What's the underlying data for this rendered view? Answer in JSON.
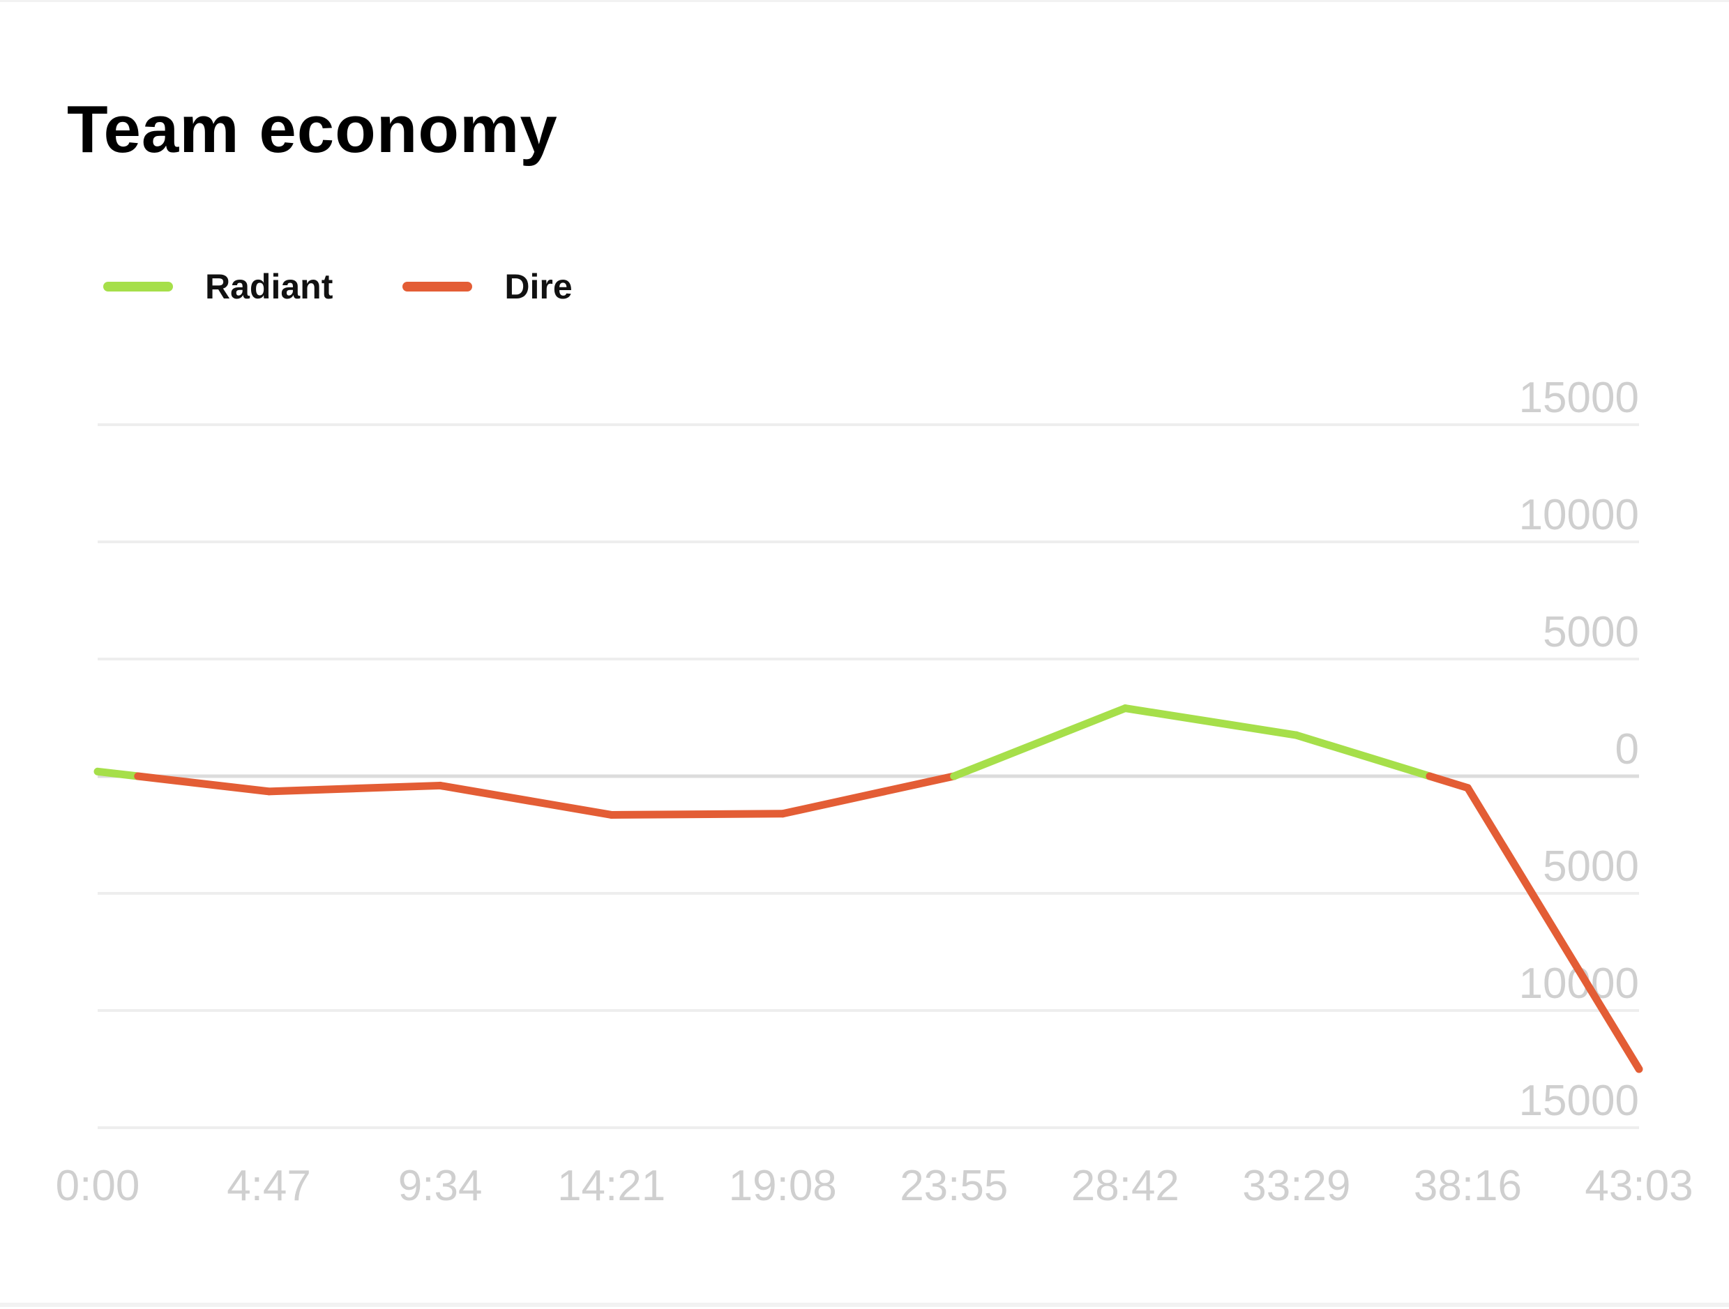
{
  "chart_data": {
    "type": "line",
    "title": "Team economy",
    "xlabel": "",
    "ylabel": "",
    "x": [
      "0:00",
      "4:47",
      "9:34",
      "14:21",
      "19:08",
      "23:55",
      "28:42",
      "33:29",
      "38:16",
      "43:03"
    ],
    "x_seconds": [
      0,
      287,
      574,
      861,
      1148,
      1435,
      1722,
      2009,
      2296,
      2583
    ],
    "values": [
      200,
      -650,
      -400,
      -1650,
      -1600,
      0,
      2900,
      1750,
      -500,
      -12500
    ],
    "ylim": [
      -15000,
      15000
    ],
    "yticks": [
      15000,
      10000,
      5000,
      0,
      -5000,
      -10000,
      -15000
    ],
    "ytick_labels": [
      "15000",
      "10000",
      "5000",
      "0",
      "5000",
      "10000",
      "15000"
    ],
    "grid": true,
    "y_axis_position": "right",
    "legend_position": "top-left",
    "legend": [
      {
        "name": "Radiant",
        "color": "#a6df4a",
        "meaning": "positive"
      },
      {
        "name": "Dire",
        "color": "#e35d35",
        "meaning": "negative"
      }
    ]
  }
}
